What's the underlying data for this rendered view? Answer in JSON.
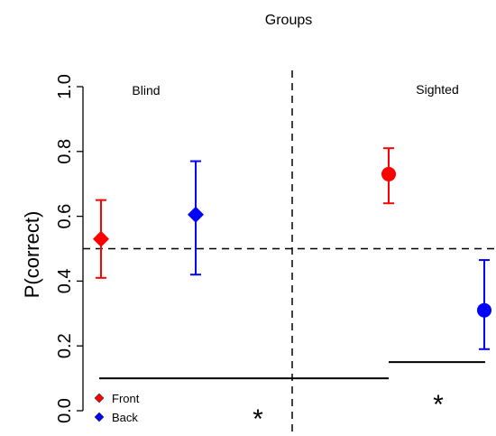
{
  "chart_data": {
    "type": "scatter",
    "title": "Groups",
    "ylabel": "P(correct)",
    "ylim": [
      0,
      1
    ],
    "yticks": [
      "0.0",
      "0.2",
      "0.4",
      "0.6",
      "0.8",
      "1.0"
    ],
    "chance_level": 0.5,
    "groups": [
      {
        "name": "Blind",
        "marker": "diamond"
      },
      {
        "name": "Sighted",
        "marker": "circle"
      }
    ],
    "points": [
      {
        "group": "Blind",
        "series": "Front",
        "y": 0.53,
        "low": 0.41,
        "high": 0.65
      },
      {
        "group": "Blind",
        "series": "Back",
        "y": 0.605,
        "low": 0.42,
        "high": 0.77
      },
      {
        "group": "Sighted",
        "series": "Front",
        "y": 0.73,
        "low": 0.64,
        "high": 0.81
      },
      {
        "group": "Sighted",
        "series": "Back",
        "y": 0.31,
        "low": 0.19,
        "high": 0.465
      }
    ],
    "legend": [
      {
        "name": "Front",
        "color": "#ff0000"
      },
      {
        "name": "Back",
        "color": "#0000ff"
      }
    ],
    "legend_position": "bottom-left",
    "significance": [
      {
        "label": "*",
        "y": 0.1
      },
      {
        "label": "*",
        "y": 0.15
      }
    ],
    "colors": {
      "Front": "#ff0000",
      "Back": "#0000ff"
    }
  }
}
